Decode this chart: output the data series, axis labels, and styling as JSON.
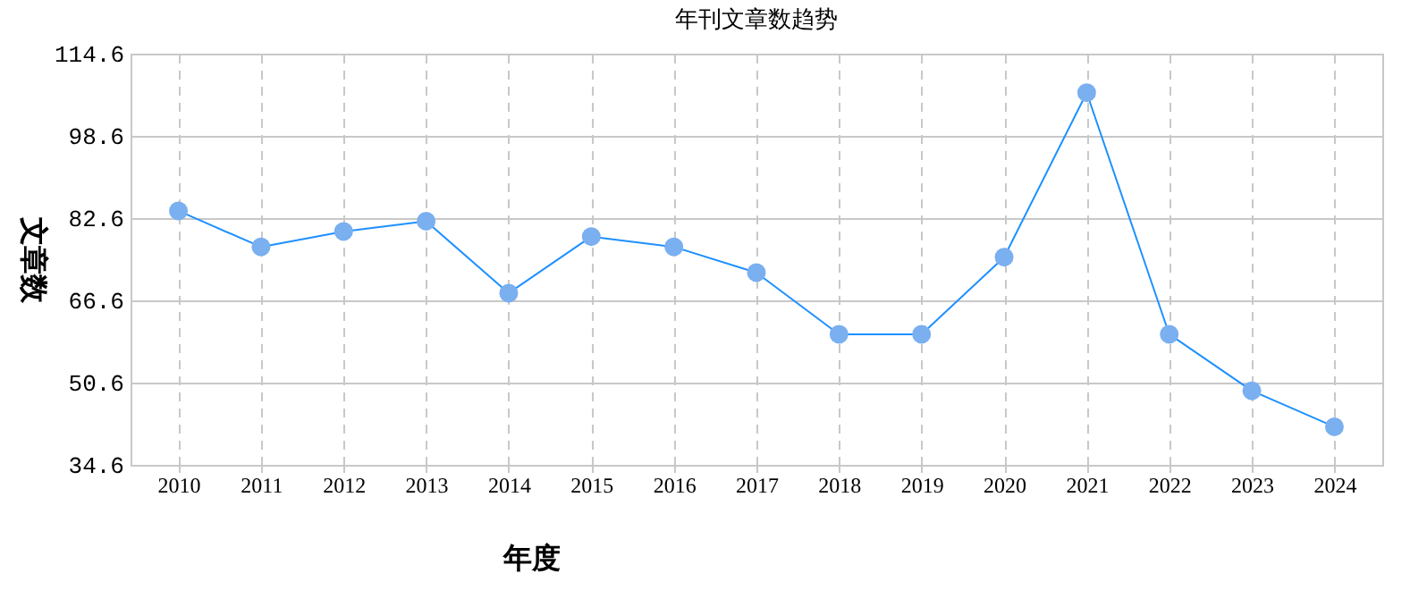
{
  "chart_data": {
    "type": "line",
    "title": "年刊文章数趋势",
    "xlabel": "年度",
    "ylabel": "文章数",
    "categories": [
      "2010",
      "2011",
      "2012",
      "2013",
      "2014",
      "2015",
      "2016",
      "2017",
      "2018",
      "2019",
      "2020",
      "2021",
      "2022",
      "2023",
      "2024"
    ],
    "series": [
      {
        "color": "#1e90ff",
        "values": [
          84,
          77,
          80,
          82,
          68,
          79,
          77,
          72,
          60,
          60,
          75,
          107,
          60,
          49,
          42
        ]
      }
    ],
    "ylim": [
      34.6,
      114.6
    ],
    "yticks": [
      34.6,
      50.6,
      66.6,
      82.6,
      98.6,
      114.6
    ],
    "grid": true,
    "marker": "circle",
    "line_style": "solid"
  }
}
